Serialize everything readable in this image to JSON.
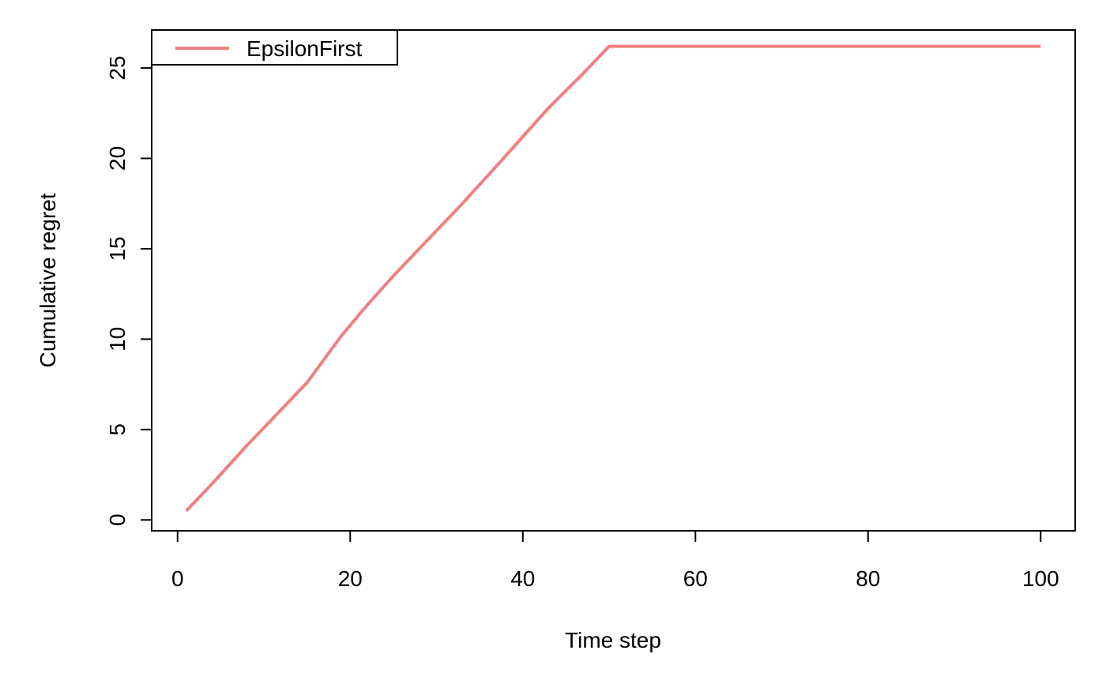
{
  "chart_data": {
    "type": "line",
    "xlabel": "Time step",
    "ylabel": "Cumulative regret",
    "xlim": [
      -3,
      104
    ],
    "ylim": [
      -0.6,
      27.1
    ],
    "xticks": [
      0,
      20,
      40,
      60,
      80,
      100
    ],
    "yticks": [
      0,
      5,
      10,
      15,
      20,
      25
    ],
    "xtick_labels": [
      "0",
      "20",
      "40",
      "60",
      "80",
      "100"
    ],
    "ytick_labels": [
      "0",
      "5",
      "10",
      "15",
      "20",
      "25"
    ],
    "grid": false,
    "legend": {
      "position": "top-left",
      "entries": [
        "EpsilonFirst"
      ]
    },
    "series": [
      {
        "name": "EpsilonFirst",
        "color": "#F08080",
        "x": [
          1,
          4,
          8,
          11,
          15,
          19,
          22,
          25,
          29,
          33,
          37,
          40,
          43,
          47,
          50,
          100
        ],
        "y": [
          0.5,
          2.0,
          4.1,
          5.6,
          7.6,
          10.2,
          11.9,
          13.5,
          15.5,
          17.5,
          19.6,
          21.2,
          22.8,
          24.7,
          26.2,
          26.2
        ]
      }
    ]
  }
}
